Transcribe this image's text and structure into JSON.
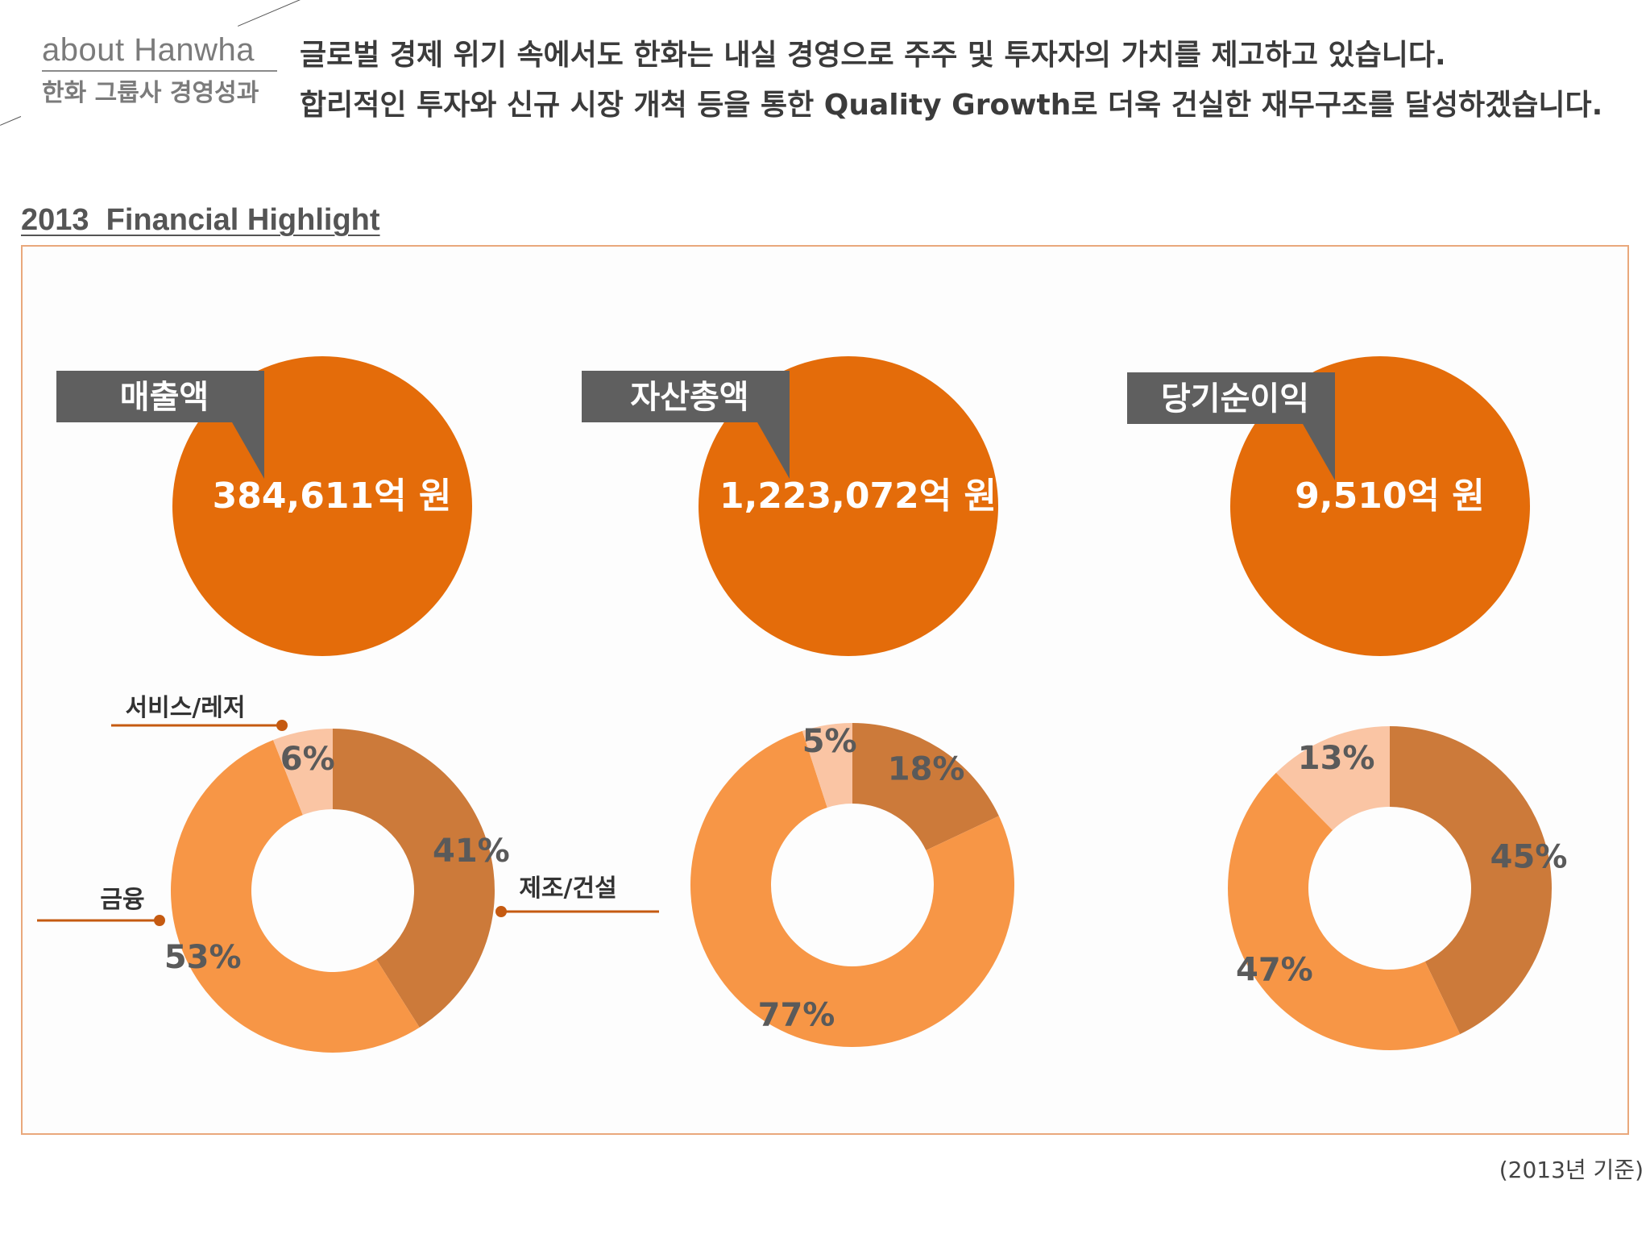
{
  "header": {
    "about_en": "about Hanwha",
    "about_ko": "한화 그룹사 경영성과",
    "intro_line1": "글로벌 경제 위기 속에서도 한화는 내실 경영으로 주주 및 투자자의 가치를 제고하고 있습니다.",
    "intro_line2": "합리적인 투자와 신규 시장 개척 등을 통한 Quality Growth로 더욱 건실한 재무구조를 달성하겠습니다."
  },
  "section_title": "2013  Financial Highlight",
  "footnote": "(2013년 기준)",
  "colors": {
    "big_circle": "#e46c0a",
    "label_box": "#5f5f5f",
    "manufacturing": "#cc7a3a",
    "finance": "#f79646",
    "service": "#fac5a4",
    "pct_text": "#5a5a5a",
    "callout": "#c55a11"
  },
  "callout_labels": {
    "service": "서비스/레저",
    "finance": "금융",
    "manufacturing": "제조/건설"
  },
  "chart_data": [
    {
      "type": "pie",
      "label": "매출액",
      "total": "384,611억 원",
      "categories": [
        "제조/건설",
        "금융",
        "서비스/레저"
      ],
      "values": [
        41,
        53,
        6
      ],
      "value_labels": [
        "41%",
        "53%",
        "6%"
      ]
    },
    {
      "type": "pie",
      "label": "자산총액",
      "total": "1,223,072억 원",
      "categories": [
        "제조/건설",
        "금융",
        "서비스/레저"
      ],
      "values": [
        18,
        77,
        5
      ],
      "value_labels": [
        "18%",
        "77%",
        "5%"
      ]
    },
    {
      "type": "pie",
      "label": "당기순이익",
      "total": "9,510억 원",
      "categories": [
        "제조/건설",
        "금융",
        "서비스/레저"
      ],
      "values": [
        45,
        47,
        13
      ],
      "value_labels": [
        "45%",
        "47%",
        "13%"
      ]
    }
  ]
}
